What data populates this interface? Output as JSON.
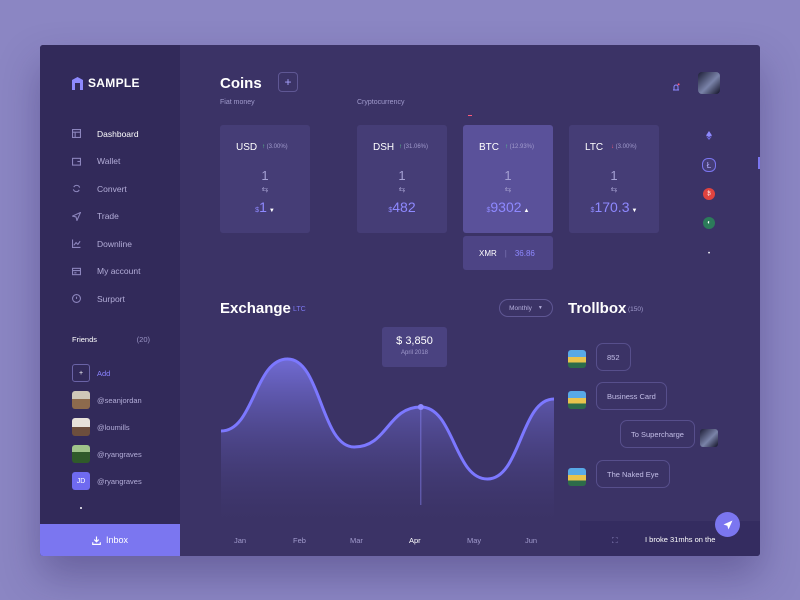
{
  "brand": "SAMPLE",
  "nav": [
    {
      "label": "Dashboard",
      "icon": "dashboard-icon",
      "active": true
    },
    {
      "label": "Wallet",
      "icon": "wallet-icon"
    },
    {
      "label": "Convert",
      "icon": "convert-icon"
    },
    {
      "label": "Trade",
      "icon": "trade-icon"
    },
    {
      "label": "Downline",
      "icon": "chart-icon"
    },
    {
      "label": "My account",
      "icon": "account-icon"
    },
    {
      "label": "Surport",
      "icon": "support-icon"
    }
  ],
  "friends": {
    "title": "Friends",
    "count": "(20)",
    "add_label": "Add",
    "list": [
      {
        "handle": "@seanjordan"
      },
      {
        "handle": "@loumills"
      },
      {
        "handle": "@ryangraves"
      },
      {
        "handle": "@ryangraves",
        "initials": "JD"
      }
    ]
  },
  "inbox_label": "Inbox",
  "coins": {
    "title": "Coins",
    "add_symbol": "+",
    "fiat_label": "Fiat money",
    "crypto_label": "Cryptocurrency",
    "cards": [
      {
        "name": "USD",
        "change": "(3.00%)",
        "dir": "up",
        "qty": "1",
        "price": "1",
        "cur": "$"
      },
      {
        "name": "DSH",
        "change": "(31.06%)",
        "dir": "up",
        "qty": "1",
        "price": "482",
        "cur": "$"
      },
      {
        "name": "BTC",
        "change": "(12.93%)",
        "dir": "up",
        "qty": "1",
        "price": "9302",
        "cur": "$",
        "highlight": true
      },
      {
        "name": "LTC",
        "change": "(3.00%)",
        "dir": "down",
        "qty": "1",
        "price": "170.3",
        "cur": "$"
      }
    ],
    "xmr": {
      "name": "XMR",
      "value": "36.86"
    },
    "side_icons": [
      "ethereum-icon",
      "litecoin-icon",
      "red-coin-icon",
      "green-coin-icon"
    ]
  },
  "exchange": {
    "title": "Exchange",
    "coin": "LTC",
    "period": "Monthly",
    "tooltip_price": "$ 3,850",
    "tooltip_date": "April 2018",
    "active_month": "Apr"
  },
  "chart_data": {
    "type": "area",
    "x": [
      "Jan",
      "Feb",
      "Mar",
      "Apr",
      "May",
      "Jun"
    ],
    "series": [
      {
        "values": [
          40,
          85,
          30,
          55,
          10,
          60
        ]
      }
    ],
    "highlight": {
      "x": "Apr",
      "value": "$ 3,850"
    }
  },
  "trollbox": {
    "title": "Trollbox",
    "count": "(150)",
    "messages": [
      {
        "text": "852",
        "side": "left"
      },
      {
        "text": "Business Card",
        "side": "left"
      },
      {
        "text": "To Supercharge",
        "side": "right"
      },
      {
        "text": "The Naked Eye",
        "side": "left"
      }
    ],
    "compose_text": "I broke 31mhs on the"
  }
}
